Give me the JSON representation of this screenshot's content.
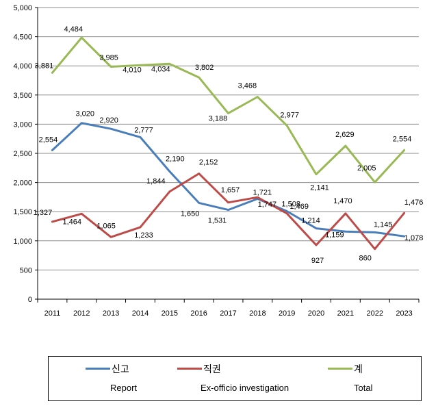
{
  "chart_data": {
    "type": "line",
    "categories": [
      "2011",
      "2012",
      "2013",
      "2014",
      "2015",
      "2016",
      "2017",
      "2018",
      "2019",
      "2020",
      "2021",
      "2022",
      "2023"
    ],
    "ylim": [
      0,
      5000
    ],
    "yticks": [
      "0",
      "500",
      "1,000",
      "1,500",
      "2,000",
      "2,500",
      "3,000",
      "3,500",
      "4,000",
      "4,500",
      "5,000"
    ],
    "ytick_values": [
      0,
      500,
      1000,
      1500,
      2000,
      2500,
      3000,
      3500,
      4000,
      4500,
      5000
    ],
    "grid": true,
    "legend_position": "bottom",
    "series": [
      {
        "key": "report",
        "name": "신고",
        "name_en": "Report",
        "color": "#4a7ebb",
        "values": [
          2554,
          3020,
          2920,
          2777,
          2190,
          1650,
          1531,
          1721,
          1508,
          1214,
          1159,
          1145,
          1078
        ],
        "labels": [
          "2,554",
          "3,020",
          "2,920",
          "2,777",
          "2,190",
          "1,650",
          "1,531",
          "1,721",
          "1,508",
          "1,214",
          "1,159",
          "1,145",
          "1,078"
        ]
      },
      {
        "key": "exofficio",
        "name": "직권",
        "name_en": "Ex-officio investigation",
        "color": "#be4b48",
        "values": [
          1327,
          1464,
          1065,
          1233,
          1844,
          2152,
          1657,
          1747,
          1469,
          927,
          1470,
          860,
          1476
        ],
        "labels": [
          "1,327",
          "1,464",
          "1,065",
          "1,233",
          "1,844",
          "2,152",
          "1,657",
          "1,747",
          "1,469",
          "927",
          "1,470",
          "860",
          "1,476"
        ]
      },
      {
        "key": "total",
        "name": "계",
        "name_en": "Total",
        "color": "#98b954",
        "values": [
          3881,
          4484,
          3985,
          4010,
          4034,
          3802,
          3188,
          3468,
          2977,
          2141,
          2629,
          2005,
          2554
        ],
        "labels": [
          "3,881",
          "4,484",
          "3,985",
          "4,010",
          "4,034",
          "3,802",
          "3,188",
          "3,468",
          "2,977",
          "2,141",
          "2,629",
          "2,005",
          "2,554"
        ]
      }
    ]
  }
}
